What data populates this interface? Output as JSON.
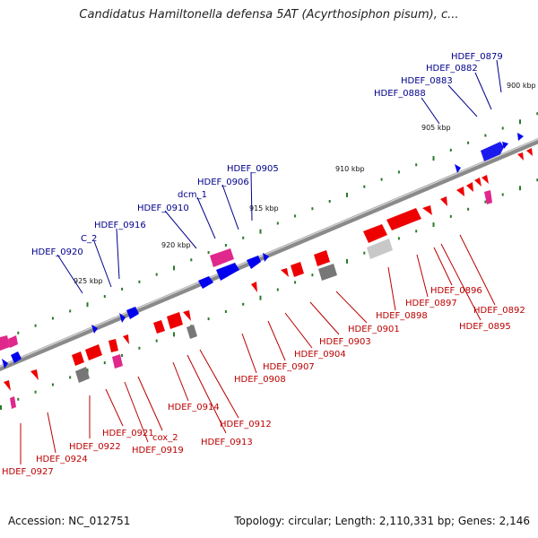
{
  "title": "Candidatus Hamiltonella defensa 5AT (Acyrthosiphon pisum), c...",
  "footer": {
    "accession": "Accession: NC_012751",
    "summary": "Topology: circular; Length: 2,110,331 bp; Genes: 2,146"
  },
  "colors": {
    "backbone": "#8a8a8a",
    "forward_gene": "#0000ee",
    "reverse_gene": "#ee0000",
    "rna_gene": "#e0288c",
    "pseudo_gene": "#777777",
    "faded_gene": "#c8c8c8",
    "tick": "#2a7a2a",
    "forward_label": "#00008b",
    "reverse_label": "#bb0000"
  },
  "scale_labels": [
    "900 kbp",
    "905 kbp",
    "910 kbp",
    "915 kbp",
    "920 kbp",
    "925 kbp"
  ],
  "forward_labels": [
    "HDEF_0879",
    "HDEF_0882",
    "HDEF_0883",
    "HDEF_0888",
    "HDEF_0905",
    "HDEF_0906",
    "dcm_1",
    "HDEF_0910",
    "HDEF_0916",
    "C_2",
    "HDEF_0920"
  ],
  "reverse_labels": [
    "HDEF_0892",
    "HDEF_0895",
    "HDEF_0896",
    "HDEF_0897",
    "HDEF_0898",
    "HDEF_0901",
    "HDEF_0903",
    "HDEF_0904",
    "HDEF_0907",
    "HDEF_0908",
    "HDEF_0912",
    "HDEF_0913",
    "HDEF_0914",
    "cox_2",
    "HDEF_0919",
    "HDEF_0921",
    "HDEF_0922",
    "HDEF_0924",
    "HDEF_0927"
  ]
}
